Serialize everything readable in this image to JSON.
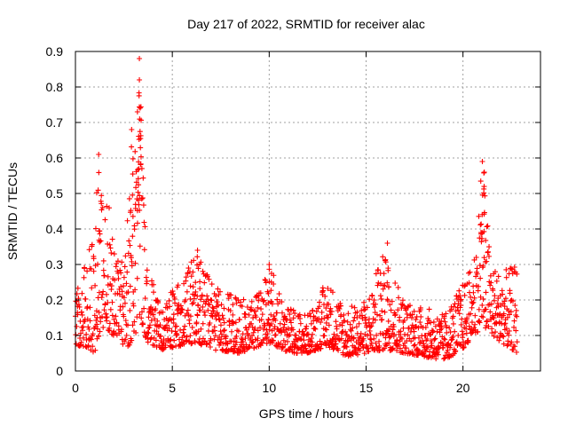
{
  "chart_data": {
    "type": "scatter",
    "title": "Day 217 of 2022, SRMTID for receiver alac",
    "xlabel": "GPS time / hours",
    "ylabel": "SRMTID / TECUs",
    "xlim": [
      0,
      24
    ],
    "ylim": [
      0,
      0.9
    ],
    "x_ticks": [
      0,
      5,
      10,
      15,
      20
    ],
    "x_tick_labels": [
      "0",
      "5",
      "10",
      "15",
      "20"
    ],
    "y_ticks": [
      0,
      0.1,
      0.2,
      0.3,
      0.4,
      0.5,
      0.6,
      0.7,
      0.8,
      0.9
    ],
    "y_tick_labels": [
      "0",
      "0.1",
      "0.2",
      "0.3",
      "0.4",
      "0.5",
      "0.6",
      "0.7",
      "0.8",
      "0.9"
    ],
    "grid": true,
    "marker": "+",
    "color": "#ff0000",
    "data_extent_hours": [
      0,
      22.8
    ],
    "series": [
      {
        "name": "SRMTID",
        "envelope": [
          {
            "x": 0.0,
            "lo": 0.07,
            "hi": 0.25
          },
          {
            "x": 0.5,
            "lo": 0.07,
            "hi": 0.3
          },
          {
            "x": 1.0,
            "lo": 0.05,
            "hi": 0.4
          },
          {
            "x": 1.3,
            "lo": 0.12,
            "hi": 0.6
          },
          {
            "x": 2.0,
            "lo": 0.1,
            "hi": 0.38
          },
          {
            "x": 2.5,
            "lo": 0.06,
            "hi": 0.3
          },
          {
            "x": 3.0,
            "lo": 0.08,
            "hi": 0.65
          },
          {
            "x": 3.3,
            "lo": 0.15,
            "hi": 0.88
          },
          {
            "x": 3.7,
            "lo": 0.08,
            "hi": 0.3
          },
          {
            "x": 4.5,
            "lo": 0.06,
            "hi": 0.22
          },
          {
            "x": 5.5,
            "lo": 0.07,
            "hi": 0.25
          },
          {
            "x": 6.2,
            "lo": 0.08,
            "hi": 0.34
          },
          {
            "x": 7.0,
            "lo": 0.06,
            "hi": 0.25
          },
          {
            "x": 8.5,
            "lo": 0.05,
            "hi": 0.2
          },
          {
            "x": 9.5,
            "lo": 0.07,
            "hi": 0.22
          },
          {
            "x": 10.0,
            "lo": 0.08,
            "hi": 0.3
          },
          {
            "x": 11.0,
            "lo": 0.05,
            "hi": 0.18
          },
          {
            "x": 12.0,
            "lo": 0.05,
            "hi": 0.16
          },
          {
            "x": 13.0,
            "lo": 0.07,
            "hi": 0.26
          },
          {
            "x": 14.0,
            "lo": 0.04,
            "hi": 0.18
          },
          {
            "x": 15.0,
            "lo": 0.05,
            "hi": 0.2
          },
          {
            "x": 16.0,
            "lo": 0.06,
            "hi": 0.35
          },
          {
            "x": 17.0,
            "lo": 0.05,
            "hi": 0.2
          },
          {
            "x": 18.0,
            "lo": 0.04,
            "hi": 0.18
          },
          {
            "x": 19.0,
            "lo": 0.03,
            "hi": 0.16
          },
          {
            "x": 20.0,
            "lo": 0.06,
            "hi": 0.25
          },
          {
            "x": 20.5,
            "lo": 0.1,
            "hi": 0.3
          },
          {
            "x": 21.0,
            "lo": 0.12,
            "hi": 0.58
          },
          {
            "x": 21.5,
            "lo": 0.1,
            "hi": 0.3
          },
          {
            "x": 22.0,
            "lo": 0.08,
            "hi": 0.28
          },
          {
            "x": 22.8,
            "lo": 0.05,
            "hi": 0.3
          }
        ],
        "peaks": [
          {
            "x": 1.2,
            "y": 0.61
          },
          {
            "x": 2.9,
            "y": 0.68
          },
          {
            "x": 3.3,
            "y": 0.88
          },
          {
            "x": 3.3,
            "y": 0.82
          },
          {
            "x": 3.2,
            "y": 0.73
          },
          {
            "x": 6.3,
            "y": 0.34
          },
          {
            "x": 10.0,
            "y": 0.3
          },
          {
            "x": 16.1,
            "y": 0.36
          },
          {
            "x": 21.0,
            "y": 0.59
          },
          {
            "x": 21.1,
            "y": 0.56
          }
        ]
      }
    ]
  }
}
